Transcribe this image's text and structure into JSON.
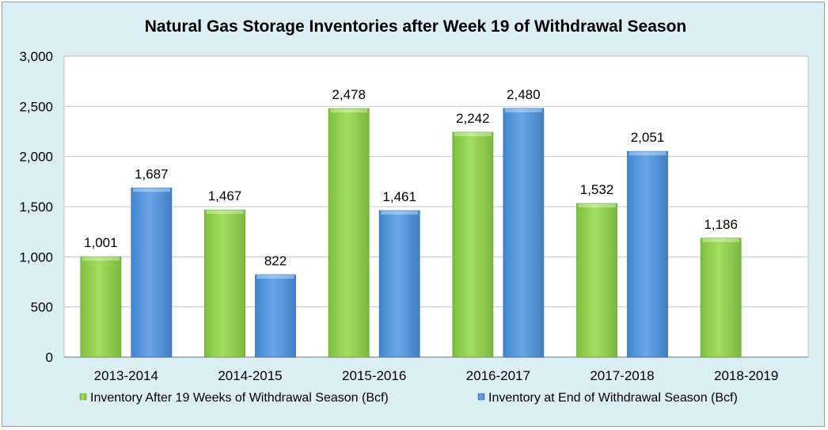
{
  "chart_data": {
    "type": "bar",
    "title": "Natural Gas Storage Inventories after Week 19 of Withdrawal Season",
    "categories": [
      "2013-2014",
      "2014-2015",
      "2015-2016",
      "2016-2017",
      "2017-2018",
      "2018-2019"
    ],
    "series": [
      {
        "name": "Inventory After 19 Weeks of Withdrawal Season (Bcf)",
        "color": "#92d050",
        "values": [
          1001,
          1467,
          2478,
          2242,
          1532,
          1186
        ]
      },
      {
        "name": "Inventory at End of Withdrawal Season (Bcf)",
        "color": "#5b9bd5",
        "values": [
          1687,
          822,
          1461,
          2480,
          2051,
          null
        ]
      }
    ],
    "ylim": [
      0,
      3000
    ],
    "yticks": [
      0,
      500,
      1000,
      1500,
      2000,
      2500,
      3000
    ],
    "ytick_labels": [
      "0",
      "500",
      "1,000",
      "1,500",
      "2,000",
      "2,500",
      "3,000"
    ],
    "data_labels": [
      [
        "1,001",
        "1,467",
        "2,478",
        "2,242",
        "1,532",
        "1,186"
      ],
      [
        "1,687",
        "822",
        "1,461",
        "2,480",
        "2,051",
        ""
      ]
    ],
    "grid": true,
    "legend_position": "bottom"
  }
}
